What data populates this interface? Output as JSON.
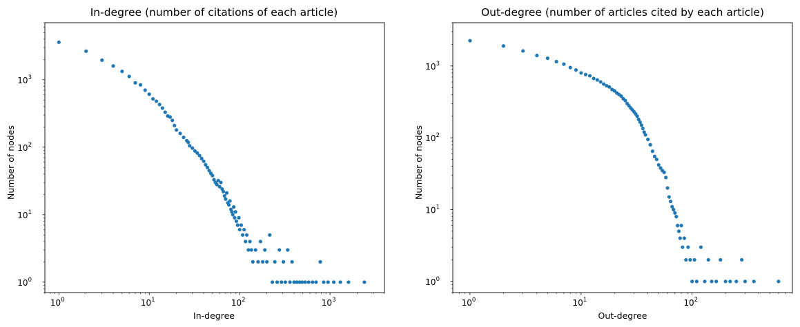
{
  "chart_data": [
    {
      "type": "scatter",
      "title": "In-degree (number of citations of each article)",
      "xlabel": "In-degree",
      "ylabel": "Number of nodes",
      "xscale": "log",
      "yscale": "log",
      "xlim": [
        0.7,
        4000
      ],
      "ylim": [
        0.7,
        7000
      ],
      "grid": false,
      "marker_color": "#1f77b4",
      "x_ticks": [
        {
          "value": 1,
          "base": "10",
          "exp": "0"
        },
        {
          "value": 10,
          "base": "10",
          "exp": "1"
        },
        {
          "value": 100,
          "base": "10",
          "exp": "2"
        },
        {
          "value": 1000,
          "base": "10",
          "exp": "3"
        }
      ],
      "y_ticks": [
        {
          "value": 1,
          "base": "10",
          "exp": "0"
        },
        {
          "value": 10,
          "base": "10",
          "exp": "1"
        },
        {
          "value": 100,
          "base": "10",
          "exp": "2"
        },
        {
          "value": 1000,
          "base": "10",
          "exp": "3"
        }
      ],
      "points": [
        [
          1,
          3600
        ],
        [
          2,
          2650
        ],
        [
          3,
          1950
        ],
        [
          4,
          1600
        ],
        [
          5,
          1330
        ],
        [
          6,
          1120
        ],
        [
          7,
          900
        ],
        [
          8,
          840
        ],
        [
          9,
          700
        ],
        [
          10,
          610
        ],
        [
          11,
          520
        ],
        [
          12,
          480
        ],
        [
          13,
          430
        ],
        [
          14,
          380
        ],
        [
          15,
          330
        ],
        [
          16,
          290
        ],
        [
          17,
          280
        ],
        [
          18,
          250
        ],
        [
          19,
          210
        ],
        [
          20,
          180
        ],
        [
          22,
          160
        ],
        [
          24,
          140
        ],
        [
          26,
          125
        ],
        [
          27,
          118
        ],
        [
          28,
          105
        ],
        [
          30,
          97
        ],
        [
          32,
          88
        ],
        [
          34,
          82
        ],
        [
          36,
          75
        ],
        [
          38,
          68
        ],
        [
          40,
          62
        ],
        [
          42,
          55
        ],
        [
          44,
          50
        ],
        [
          46,
          45
        ],
        [
          48,
          41
        ],
        [
          50,
          38
        ],
        [
          52,
          33
        ],
        [
          54,
          30
        ],
        [
          56,
          28
        ],
        [
          58,
          32
        ],
        [
          60,
          26
        ],
        [
          62,
          30
        ],
        [
          64,
          24
        ],
        [
          66,
          22
        ],
        [
          68,
          19
        ],
        [
          70,
          17
        ],
        [
          72,
          21
        ],
        [
          74,
          15
        ],
        [
          76,
          14
        ],
        [
          78,
          16
        ],
        [
          80,
          12
        ],
        [
          82,
          11
        ],
        [
          84,
          10
        ],
        [
          86,
          13
        ],
        [
          88,
          9
        ],
        [
          90,
          11
        ],
        [
          92,
          8
        ],
        [
          95,
          7
        ],
        [
          98,
          9
        ],
        [
          100,
          6
        ],
        [
          104,
          7
        ],
        [
          108,
          5
        ],
        [
          112,
          6
        ],
        [
          116,
          4
        ],
        [
          120,
          5
        ],
        [
          125,
          3
        ],
        [
          130,
          4
        ],
        [
          135,
          3
        ],
        [
          140,
          2
        ],
        [
          150,
          3
        ],
        [
          160,
          2
        ],
        [
          170,
          4
        ],
        [
          180,
          2
        ],
        [
          190,
          3
        ],
        [
          200,
          2
        ],
        [
          215,
          5
        ],
        [
          230,
          1
        ],
        [
          245,
          2
        ],
        [
          260,
          1
        ],
        [
          275,
          3
        ],
        [
          290,
          1
        ],
        [
          305,
          2
        ],
        [
          320,
          1
        ],
        [
          340,
          3
        ],
        [
          360,
          1
        ],
        [
          380,
          2
        ],
        [
          400,
          1
        ],
        [
          430,
          1
        ],
        [
          460,
          1
        ],
        [
          490,
          1
        ],
        [
          530,
          1
        ],
        [
          580,
          1
        ],
        [
          640,
          1
        ],
        [
          700,
          1
        ],
        [
          780,
          2
        ],
        [
          850,
          1
        ],
        [
          950,
          1
        ],
        [
          1100,
          1
        ],
        [
          1300,
          1
        ],
        [
          1600,
          1
        ],
        [
          2400,
          1
        ]
      ]
    },
    {
      "type": "scatter",
      "title": "Out-degree (number of articles cited by each article)",
      "xlabel": "Out-degree",
      "ylabel": "Number of nodes",
      "xscale": "log",
      "yscale": "log",
      "xlim": [
        0.7,
        800
      ],
      "ylim": [
        0.7,
        4000
      ],
      "grid": false,
      "marker_color": "#1f77b4",
      "x_ticks": [
        {
          "value": 1,
          "base": "10",
          "exp": "0"
        },
        {
          "value": 10,
          "base": "10",
          "exp": "1"
        },
        {
          "value": 100,
          "base": "10",
          "exp": "2"
        }
      ],
      "y_ticks": [
        {
          "value": 1,
          "base": "10",
          "exp": "0"
        },
        {
          "value": 10,
          "base": "10",
          "exp": "1"
        },
        {
          "value": 100,
          "base": "10",
          "exp": "2"
        },
        {
          "value": 1000,
          "base": "10",
          "exp": "3"
        }
      ],
      "points": [
        [
          1,
          2250
        ],
        [
          2,
          1900
        ],
        [
          3,
          1620
        ],
        [
          4,
          1400
        ],
        [
          5,
          1280
        ],
        [
          6,
          1150
        ],
        [
          7,
          1060
        ],
        [
          8,
          950
        ],
        [
          9,
          880
        ],
        [
          10,
          800
        ],
        [
          11,
          760
        ],
        [
          12,
          730
        ],
        [
          13,
          670
        ],
        [
          14,
          640
        ],
        [
          15,
          600
        ],
        [
          16,
          560
        ],
        [
          17,
          530
        ],
        [
          18,
          510
        ],
        [
          19,
          470
        ],
        [
          20,
          450
        ],
        [
          21,
          420
        ],
        [
          22,
          400
        ],
        [
          23,
          380
        ],
        [
          24,
          350
        ],
        [
          25,
          330
        ],
        [
          26,
          300
        ],
        [
          27,
          280
        ],
        [
          28,
          260
        ],
        [
          29,
          245
        ],
        [
          30,
          230
        ],
        [
          31,
          215
        ],
        [
          32,
          200
        ],
        [
          33,
          180
        ],
        [
          34,
          165
        ],
        [
          35,
          150
        ],
        [
          36,
          135
        ],
        [
          37,
          120
        ],
        [
          38,
          110
        ],
        [
          40,
          95
        ],
        [
          42,
          80
        ],
        [
          44,
          65
        ],
        [
          46,
          55
        ],
        [
          48,
          50
        ],
        [
          50,
          42
        ],
        [
          52,
          38
        ],
        [
          54,
          35
        ],
        [
          56,
          33
        ],
        [
          58,
          28
        ],
        [
          60,
          20
        ],
        [
          62,
          15
        ],
        [
          64,
          13
        ],
        [
          66,
          11
        ],
        [
          68,
          10
        ],
        [
          70,
          9
        ],
        [
          72,
          8
        ],
        [
          74,
          6
        ],
        [
          76,
          5
        ],
        [
          78,
          4
        ],
        [
          80,
          6
        ],
        [
          82,
          3
        ],
        [
          85,
          4
        ],
        [
          88,
          2
        ],
        [
          92,
          3
        ],
        [
          96,
          2
        ],
        [
          100,
          1
        ],
        [
          105,
          2
        ],
        [
          110,
          1
        ],
        [
          120,
          3
        ],
        [
          130,
          1
        ],
        [
          140,
          2
        ],
        [
          150,
          1
        ],
        [
          165,
          1
        ],
        [
          180,
          2
        ],
        [
          200,
          1
        ],
        [
          220,
          1
        ],
        [
          250,
          1
        ],
        [
          280,
          2
        ],
        [
          300,
          1
        ],
        [
          360,
          1
        ],
        [
          600,
          1
        ]
      ]
    }
  ]
}
